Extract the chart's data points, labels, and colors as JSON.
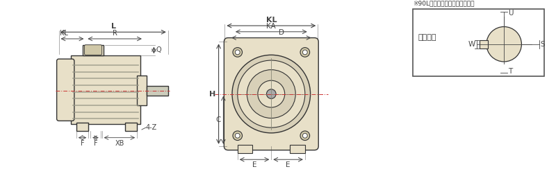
{
  "bg_color": "#ffffff",
  "line_color": "#333333",
  "fill_color": "#e8e0c8",
  "dark_fill": "#888888",
  "dim_color": "#444444",
  "note_text": "※90L框は吹り手なしになります",
  "shaft_label": "軸端共通",
  "labels_side": [
    "L",
    "KL",
    "R",
    "Q",
    "F",
    "F",
    "XB",
    "4-Z"
  ],
  "labels_front": [
    "KL",
    "KA",
    "D",
    "H",
    "C",
    "E",
    "E"
  ],
  "labels_shaft": [
    "U",
    "W",
    "S",
    "T"
  ]
}
